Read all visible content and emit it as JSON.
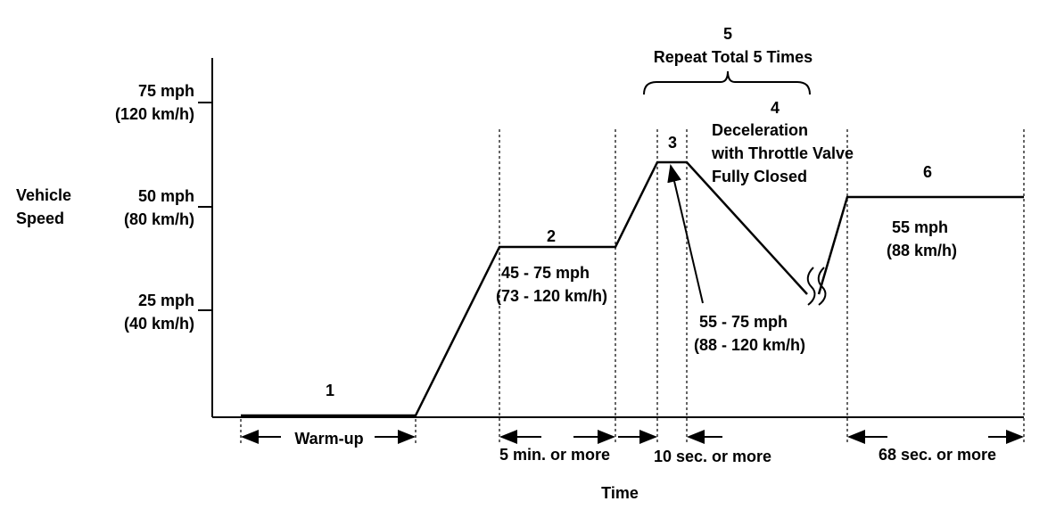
{
  "y_axis": {
    "label_line1": "Vehicle",
    "label_line2": "Speed",
    "ticks": [
      {
        "mph": "75 mph",
        "kmh": "(120 km/h)"
      },
      {
        "mph": "50 mph",
        "kmh": "(80 km/h)"
      },
      {
        "mph": "25 mph",
        "kmh": "(40 km/h)"
      }
    ]
  },
  "x_axis": {
    "label": "Time"
  },
  "phases": {
    "p1": {
      "num": "1",
      "duration": "Warm-up"
    },
    "p2": {
      "num": "2",
      "speed": "45 - 75 mph",
      "speed_kmh": "(73 - 120 km/h)",
      "duration": "5 min. or more"
    },
    "p3": {
      "num": "3",
      "speed": "55 - 75 mph",
      "speed_kmh": "(88 - 120 km/h)",
      "duration": "10 sec. or more"
    },
    "p4": {
      "num": "4",
      "line1": "Deceleration",
      "line2": "with Throttle Valve",
      "line3": "Fully Closed"
    },
    "p5": {
      "num": "5",
      "label": "Repeat Total 5 Times"
    },
    "p6": {
      "num": "6",
      "speed": "55 mph",
      "speed_kmh": "(88 km/h)",
      "duration": "68 sec. or more"
    }
  }
}
